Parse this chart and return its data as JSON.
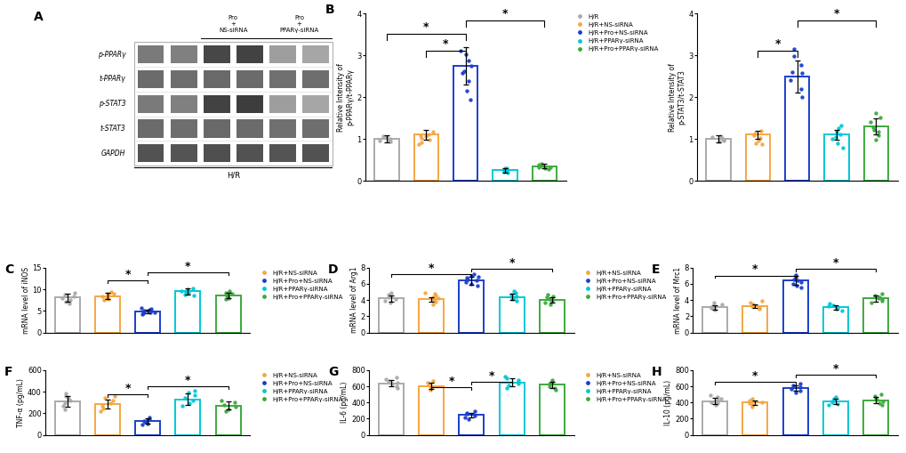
{
  "colors": {
    "HR": "#aaaaaa",
    "HR_NS": "#f5a742",
    "HR_Pro_NS": "#1a3fcc",
    "HR_PPAR": "#00c8d8",
    "HR_Pro_PPAR": "#3daa3d"
  },
  "legend_labels_full": [
    "H/R",
    "H/R+NS-siRNA",
    "H/R+Pro+NS-siRNA",
    "H/R+PPARγ-siRNA",
    "H/R+Pro+PPARγ-siRNA"
  ],
  "legend_labels_no_hr": [
    "H/R+NS-siRNA",
    "H/R+Pro+NS-siRNA",
    "H/R+PPARγ-siRNA",
    "H/R+Pro+PPARγ-siRNA"
  ],
  "panel_B1": {
    "label": "B",
    "ylabel": "Relative Intensity of\np-PPARγ/t-PPARγ",
    "ylim": [
      0,
      4
    ],
    "yticks": [
      0,
      1,
      2,
      3,
      4
    ],
    "bars": [
      1.0,
      1.1,
      2.75,
      0.25,
      0.35
    ],
    "errors": [
      0.08,
      0.12,
      0.45,
      0.05,
      0.06
    ],
    "dots": [
      [
        0.93,
        0.96,
        0.99,
        1.01,
        1.04,
        1.07
      ],
      [
        0.92,
        0.98,
        1.03,
        1.08,
        1.12,
        1.18,
        0.88,
        1.06
      ],
      [
        1.95,
        2.15,
        2.38,
        2.58,
        2.75,
        2.88,
        3.02,
        3.12,
        2.62
      ],
      [
        0.19,
        0.22,
        0.24,
        0.27,
        0.29,
        0.31,
        0.23
      ],
      [
        0.27,
        0.3,
        0.33,
        0.36,
        0.39,
        0.41,
        0.32
      ]
    ],
    "sig_lines": [
      [
        0,
        2,
        0.88,
        "*"
      ],
      [
        1,
        2,
        0.78,
        "*"
      ],
      [
        2,
        4,
        0.96,
        "*"
      ]
    ],
    "show_hr_in_legend": true
  },
  "panel_B2": {
    "label": "",
    "ylabel": "Relative Intensity of\np-STAT3/t-STAT3",
    "ylim": [
      0,
      4
    ],
    "yticks": [
      0,
      1,
      2,
      3,
      4
    ],
    "bars": [
      1.0,
      1.1,
      2.5,
      1.1,
      1.3
    ],
    "errors": [
      0.08,
      0.1,
      0.38,
      0.12,
      0.2
    ],
    "dots": [
      [
        0.93,
        0.96,
        0.99,
        1.01,
        1.04,
        1.07
      ],
      [
        0.9,
        0.96,
        1.02,
        1.08,
        1.14,
        1.2,
        0.88
      ],
      [
        2.0,
        2.2,
        2.4,
        2.6,
        2.78,
        2.98,
        3.15,
        2.58
      ],
      [
        0.78,
        0.9,
        1.0,
        1.1,
        1.18,
        1.25,
        1.32,
        1.05
      ],
      [
        0.98,
        1.08,
        1.18,
        1.28,
        1.4,
        1.52,
        1.62,
        1.22
      ]
    ],
    "sig_lines": [
      [
        1,
        2,
        0.78,
        "*"
      ],
      [
        2,
        4,
        0.96,
        "*"
      ]
    ],
    "show_hr_in_legend": true
  },
  "panel_C": {
    "label": "C",
    "ylabel": "mRNA level of iNOS",
    "ylim": [
      0,
      15
    ],
    "yticks": [
      0,
      5,
      10,
      15
    ],
    "bars": [
      8.1,
      8.4,
      4.9,
      9.5,
      8.5
    ],
    "errors": [
      0.9,
      0.7,
      0.4,
      0.8,
      0.6
    ],
    "dots": [
      [
        6.8,
        7.2,
        7.6,
        8.0,
        8.4,
        8.8,
        9.2
      ],
      [
        7.5,
        7.8,
        8.0,
        8.4,
        8.7,
        9.0,
        9.3,
        8.9
      ],
      [
        4.2,
        4.4,
        4.6,
        4.8,
        5.0,
        5.2,
        5.4,
        4.7,
        5.6
      ],
      [
        8.5,
        8.8,
        9.1,
        9.4,
        9.7,
        10.0,
        10.3
      ],
      [
        7.7,
        8.0,
        8.3,
        8.6,
        8.9,
        9.2,
        9.5
      ]
    ],
    "sig_lines": [
      [
        1,
        2,
        0.8,
        "*"
      ],
      [
        2,
        4,
        0.93,
        "*"
      ]
    ],
    "show_hr_in_legend": false
  },
  "panel_D": {
    "label": "D",
    "ylabel": "mRNA level of Arg1",
    "ylim": [
      0,
      8
    ],
    "yticks": [
      0,
      2,
      4,
      6,
      8
    ],
    "bars": [
      4.2,
      4.1,
      6.4,
      4.4,
      4.0
    ],
    "errors": [
      0.35,
      0.3,
      0.48,
      0.38,
      0.32
    ],
    "dots": [
      [
        3.7,
        3.9,
        4.1,
        4.3,
        4.5,
        4.7,
        4.9
      ],
      [
        3.5,
        3.8,
        4.0,
        4.2,
        4.4,
        4.6,
        4.8,
        4.9
      ],
      [
        5.8,
        6.0,
        6.2,
        6.4,
        6.6,
        6.8,
        7.0,
        7.2,
        6.9
      ],
      [
        3.9,
        4.1,
        4.3,
        4.5,
        4.7,
        4.9,
        5.1
      ],
      [
        3.5,
        3.7,
        3.9,
        4.1,
        4.3,
        4.5,
        4.7
      ]
    ],
    "sig_lines": [
      [
        0,
        2,
        0.9,
        "*"
      ],
      [
        2,
        4,
        0.98,
        "*"
      ]
    ],
    "show_hr_in_legend": false
  },
  "panel_E": {
    "label": "E",
    "ylabel": "mRNA level of Mrc1",
    "ylim": [
      0,
      8
    ],
    "yticks": [
      0,
      2,
      4,
      6,
      8
    ],
    "bars": [
      3.1,
      3.2,
      6.4,
      3.1,
      4.2
    ],
    "errors": [
      0.25,
      0.22,
      0.55,
      0.28,
      0.38
    ],
    "dots": [
      [
        2.8,
        3.0,
        3.1,
        3.2,
        3.3,
        3.5,
        3.7
      ],
      [
        2.9,
        3.0,
        3.2,
        3.3,
        3.5,
        3.7,
        3.9
      ],
      [
        5.6,
        5.8,
        6.0,
        6.2,
        6.4,
        6.6,
        6.9,
        7.1
      ],
      [
        2.7,
        2.9,
        3.0,
        3.2,
        3.4,
        3.6
      ],
      [
        3.7,
        3.9,
        4.1,
        4.2,
        4.4,
        4.6,
        4.8
      ]
    ],
    "sig_lines": [
      [
        0,
        2,
        0.88,
        "*"
      ],
      [
        2,
        4,
        0.98,
        "*"
      ]
    ],
    "show_hr_in_legend": false
  },
  "panel_F": {
    "label": "F",
    "ylabel": "TNF-α (pg/mL)",
    "ylim": [
      0,
      600
    ],
    "yticks": [
      0,
      200,
      400,
      600
    ],
    "bars": [
      310,
      285,
      130,
      330,
      270
    ],
    "errors": [
      52,
      42,
      22,
      55,
      38
    ],
    "dots": [
      [
        240,
        268,
        292,
        315,
        338,
        362,
        388
      ],
      [
        220,
        248,
        268,
        292,
        315,
        340,
        362
      ],
      [
        98,
        108,
        118,
        128,
        138,
        148,
        158
      ],
      [
        268,
        292,
        315,
        340,
        365,
        390,
        412
      ],
      [
        218,
        240,
        262,
        280,
        300,
        322
      ]
    ],
    "sig_lines": [
      [
        1,
        2,
        0.62,
        "*"
      ],
      [
        2,
        4,
        0.75,
        "*"
      ]
    ],
    "show_hr_in_legend": false
  },
  "panel_G": {
    "label": "G",
    "ylabel": "IL-6 (pg/mL)",
    "ylim": [
      0,
      800
    ],
    "yticks": [
      0,
      200,
      400,
      600,
      800
    ],
    "bars": [
      638,
      605,
      248,
      648,
      618
    ],
    "errors": [
      42,
      35,
      28,
      48,
      38
    ],
    "dots": [
      [
        578,
        602,
        628,
        648,
        668,
        690,
        712
      ],
      [
        555,
        580,
        602,
        625,
        648,
        668
      ],
      [
        198,
        218,
        238,
        255,
        272,
        292
      ],
      [
        582,
        608,
        632,
        655,
        678,
        700,
        722
      ],
      [
        558,
        582,
        605,
        628,
        652,
        678
      ]
    ],
    "sig_lines": [
      [
        1,
        2,
        0.73,
        "*"
      ],
      [
        2,
        3,
        0.82,
        "*"
      ]
    ],
    "show_hr_in_legend": false
  },
  "panel_H": {
    "label": "H",
    "ylabel": "IL-10 (pg/mL)",
    "ylim": [
      0,
      800
    ],
    "yticks": [
      0,
      200,
      400,
      600,
      800
    ],
    "bars": [
      418,
      398,
      578,
      415,
      428
    ],
    "errors": [
      38,
      32,
      32,
      36,
      40
    ],
    "dots": [
      [
        368,
        388,
        408,
        428,
        448,
        468,
        490
      ],
      [
        345,
        368,
        388,
        408,
        428,
        452
      ],
      [
        528,
        548,
        568,
        588,
        608,
        628
      ],
      [
        365,
        385,
        405,
        425,
        445,
        465
      ],
      [
        375,
        395,
        415,
        435,
        455,
        478,
        498
      ]
    ],
    "sig_lines": [
      [
        0,
        2,
        0.82,
        "*"
      ],
      [
        2,
        4,
        0.93,
        "*"
      ]
    ],
    "show_hr_in_legend": false
  }
}
